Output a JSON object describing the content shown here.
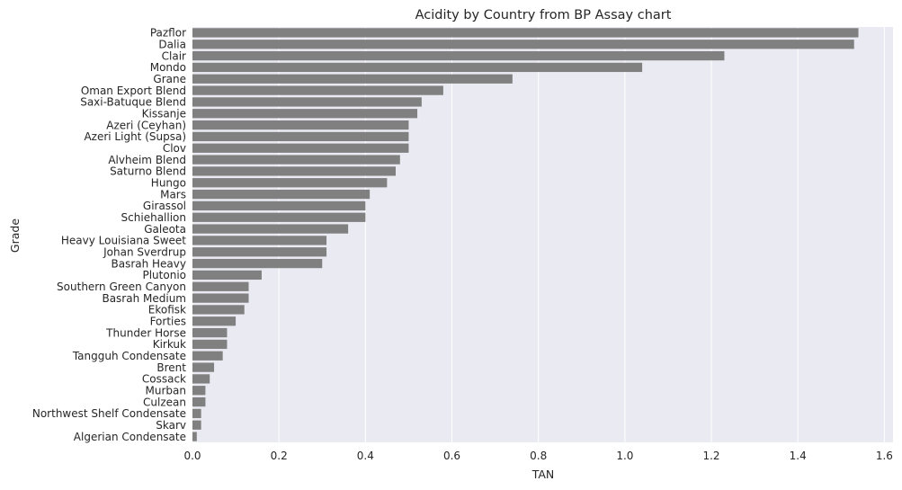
{
  "chart_data": {
    "type": "bar",
    "orientation": "horizontal",
    "title": "Acidity by Country from BP Assay chart",
    "xlabel": "TAN",
    "ylabel": "Grade",
    "xlim": [
      0,
      1.62
    ],
    "xticks": [
      "0.0",
      "0.2",
      "0.4",
      "0.6",
      "0.8",
      "1.0",
      "1.2",
      "1.4",
      "1.6"
    ],
    "grid": true,
    "categories": [
      "Pazflor",
      "Dalia",
      "Clair",
      "Mondo",
      "Grane",
      "Oman Export Blend",
      "Saxi-Batuque Blend",
      "Kissanje",
      "Azeri (Ceyhan)",
      "Azeri Light (Supsa)",
      "Clov",
      "Alvheim Blend",
      "Saturno Blend",
      "Hungo",
      "Mars",
      "Girassol",
      "Schiehallion",
      "Galeota",
      "Heavy Louisiana Sweet",
      "Johan Sverdrup",
      "Basrah Heavy",
      "Plutonio",
      "Southern Green Canyon",
      "Basrah Medium",
      "Ekofisk",
      "Forties",
      "Thunder Horse",
      "Kirkuk",
      "Tangguh Condensate",
      "Brent",
      "Cossack",
      "Murban",
      "Culzean",
      "Northwest Shelf Condensate",
      "Skarv",
      "Algerian Condensate"
    ],
    "values": [
      1.54,
      1.53,
      1.23,
      1.04,
      0.74,
      0.58,
      0.53,
      0.52,
      0.5,
      0.5,
      0.5,
      0.48,
      0.47,
      0.45,
      0.41,
      0.4,
      0.4,
      0.36,
      0.31,
      0.31,
      0.3,
      0.16,
      0.13,
      0.13,
      0.12,
      0.1,
      0.08,
      0.08,
      0.07,
      0.05,
      0.04,
      0.03,
      0.03,
      0.02,
      0.02,
      0.01
    ],
    "bar_color": "#808080",
    "background_color": "#eaeaf2",
    "grid_color": "#ffffff"
  }
}
